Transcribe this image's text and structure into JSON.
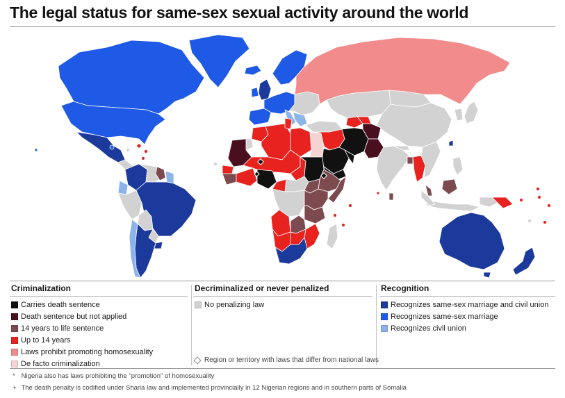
{
  "title": "The legal status for same-sex sexual activity around the world",
  "colors": {
    "ocean": "#ffffff",
    "no_law": "#d2d2d2",
    "death": "#111111",
    "death_not_applied": "#4a0f1f",
    "life": "#7d4a4f",
    "up_to_14": "#e8231f",
    "promoting": "#f28b8b",
    "de_facto": "#f7d2d2",
    "marriage_civil": "#1c3a9c",
    "marriage": "#1f5ae6",
    "civil_union": "#8db4ea"
  },
  "legend": {
    "criminalization": {
      "heading": "Criminalization",
      "items": [
        {
          "label": "Carries death sentence",
          "color": "#111111"
        },
        {
          "label": "Death sentence but not applied",
          "color": "#4a0f1f"
        },
        {
          "label": "14 years to life sentence",
          "color": "#7d4a4f"
        },
        {
          "label": "Up to 14 years",
          "color": "#e8231f"
        },
        {
          "label": "Laws prohibit promoting homosexuality",
          "color": "#f28b8b"
        },
        {
          "label": "De facto criminalization",
          "color": "#f7d2d2"
        }
      ]
    },
    "decriminalized": {
      "heading": "Decriminalized or never penalized",
      "items": [
        {
          "label": "No penalizing law",
          "color": "#d2d2d2"
        }
      ],
      "region_note": "Region or territory with laws that differ from national laws"
    },
    "recognition": {
      "heading": "Recognition",
      "items": [
        {
          "label": "Recognizes same-sex marriage and civil union",
          "color": "#1c3a9c"
        },
        {
          "label": "Recognizes same-sex marriage",
          "color": "#1f5ae6"
        },
        {
          "label": "Recognizes civil union",
          "color": "#8db4ea"
        }
      ]
    }
  },
  "footnotes": [
    {
      "marker": "*",
      "text": "Nigeria also has laws prohibiting the \"promotion\" of homosexuality"
    },
    {
      "marker": "+",
      "text": "The death penalty is codified under Sharia law and implemented provincially in 12 Nigerian regions and in southern parts of Somalia"
    }
  ]
}
